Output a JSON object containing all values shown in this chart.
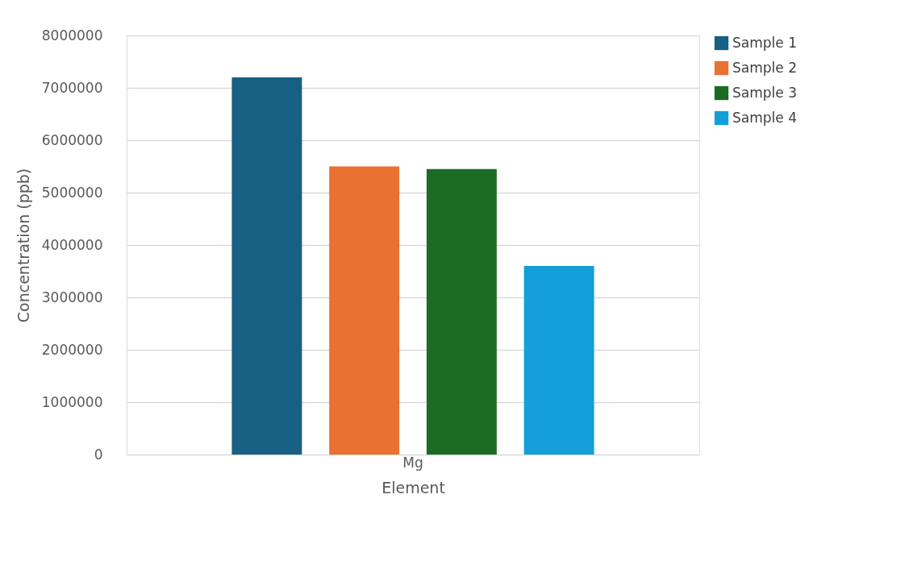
{
  "chart_data": {
    "type": "bar",
    "xlabel": "Element",
    "ylabel": "Concentration (ppb)",
    "categories": [
      "Mg"
    ],
    "series": [
      {
        "name": "Sample 1",
        "color": "#175f83",
        "values": [
          7200000
        ]
      },
      {
        "name": "Sample 2",
        "color": "#e97132",
        "values": [
          5500000
        ]
      },
      {
        "name": "Sample 3",
        "color": "#1b6b24",
        "values": [
          5450000
        ]
      },
      {
        "name": "Sample 4",
        "color": "#149fd8",
        "values": [
          3600000
        ]
      }
    ],
    "ylim": [
      0,
      8000000
    ],
    "yticks": [
      0,
      1000000,
      2000000,
      3000000,
      4000000,
      5000000,
      6000000,
      7000000,
      8000000
    ],
    "grid": "y",
    "legend": "right"
  }
}
